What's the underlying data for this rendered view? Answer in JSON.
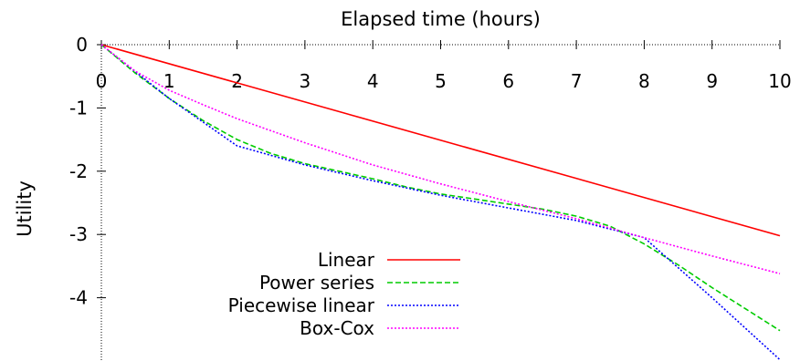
{
  "chart_data": {
    "type": "line",
    "title": "",
    "xlabel": "Elapsed time (hours)",
    "ylabel": "Utility",
    "xlim": [
      0,
      10
    ],
    "ylim": [
      -5,
      0
    ],
    "x_ticks": [
      "0",
      "1",
      "2",
      "3",
      "4",
      "5",
      "6",
      "7",
      "8",
      "9",
      "10"
    ],
    "y_ticks": [
      "0",
      "-1",
      "-2",
      "-3",
      "-4"
    ],
    "x_axis_position": "top",
    "grid": false,
    "legend_position": "bottom-center",
    "series": [
      {
        "name": "Linear",
        "color": "#ff0000",
        "dash": "solid",
        "x": [
          0,
          10
        ],
        "y": [
          0,
          -3.02
        ]
      },
      {
        "name": "Power series",
        "color": "#00cc00",
        "dash": "dashed",
        "x": [
          0,
          0.5,
          1,
          1.5,
          2,
          2.5,
          3,
          3.5,
          4,
          4.5,
          5,
          5.5,
          6,
          6.5,
          7,
          7.5,
          8,
          8.5,
          9,
          9.5,
          10
        ],
        "y": [
          0,
          -0.45,
          -0.85,
          -1.2,
          -1.5,
          -1.72,
          -1.88,
          -2.0,
          -2.12,
          -2.25,
          -2.36,
          -2.44,
          -2.52,
          -2.6,
          -2.71,
          -2.87,
          -3.15,
          -3.48,
          -3.84,
          -4.18,
          -4.52
        ]
      },
      {
        "name": "Piecewise linear",
        "color": "#0000ff",
        "dash": "dotted",
        "x": [
          0,
          1,
          2,
          3,
          4,
          5,
          6,
          7,
          8,
          9,
          10
        ],
        "y": [
          0,
          -0.85,
          -1.6,
          -1.9,
          -2.15,
          -2.38,
          -2.58,
          -2.78,
          -3.05,
          -4.0,
          -4.98
        ]
      },
      {
        "name": "Box-Cox",
        "color": "#ff00ff",
        "dash": "dotted",
        "x": [
          0,
          0.5,
          1,
          1.5,
          2,
          3,
          4,
          5,
          6,
          7,
          8,
          9,
          10
        ],
        "y": [
          0,
          -0.42,
          -0.72,
          -0.95,
          -1.17,
          -1.55,
          -1.9,
          -2.2,
          -2.48,
          -2.75,
          -3.05,
          -3.34,
          -3.62
        ]
      }
    ]
  }
}
